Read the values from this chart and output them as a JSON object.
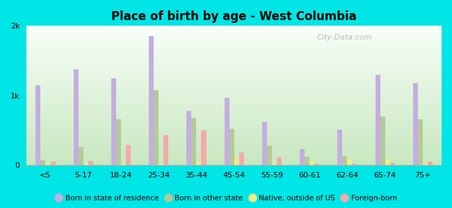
{
  "title": "Place of birth by age - West Columbia",
  "categories": [
    "<5",
    "5-17",
    "18-24",
    "25-34",
    "35-44",
    "45-54",
    "55-59",
    "60-61",
    "62-64",
    "65-74",
    "75+"
  ],
  "series": {
    "born_in_state": [
      1150,
      1380,
      1250,
      1850,
      780,
      970,
      620,
      230,
      510,
      1300,
      1180
    ],
    "born_other_state": [
      75,
      260,
      660,
      1080,
      680,
      520,
      280,
      120,
      130,
      700,
      660
    ],
    "native_outside_us": [
      20,
      25,
      20,
      25,
      50,
      90,
      20,
      55,
      80,
      85,
      25
    ],
    "foreign_born": [
      55,
      65,
      290,
      430,
      500,
      185,
      110,
      25,
      25,
      35,
      55
    ]
  },
  "colors": {
    "born_in_state": "#c4aee0",
    "born_other_state": "#b5c99a",
    "native_outside_us": "#eeee88",
    "foreign_born": "#f4aaaa"
  },
  "legend_labels": [
    "Born in state of residence",
    "Born in other state",
    "Native, outside of US",
    "Foreign-born"
  ],
  "ylim": [
    0,
    2000
  ],
  "yticks": [
    0,
    1000,
    2000
  ],
  "ytick_labels": [
    "0",
    "1k",
    "2k"
  ],
  "bg_top": "#f8fff8",
  "bg_bottom": "#c8e8c0",
  "figure_background": "#00e5e5",
  "watermark": "City-Data.com"
}
